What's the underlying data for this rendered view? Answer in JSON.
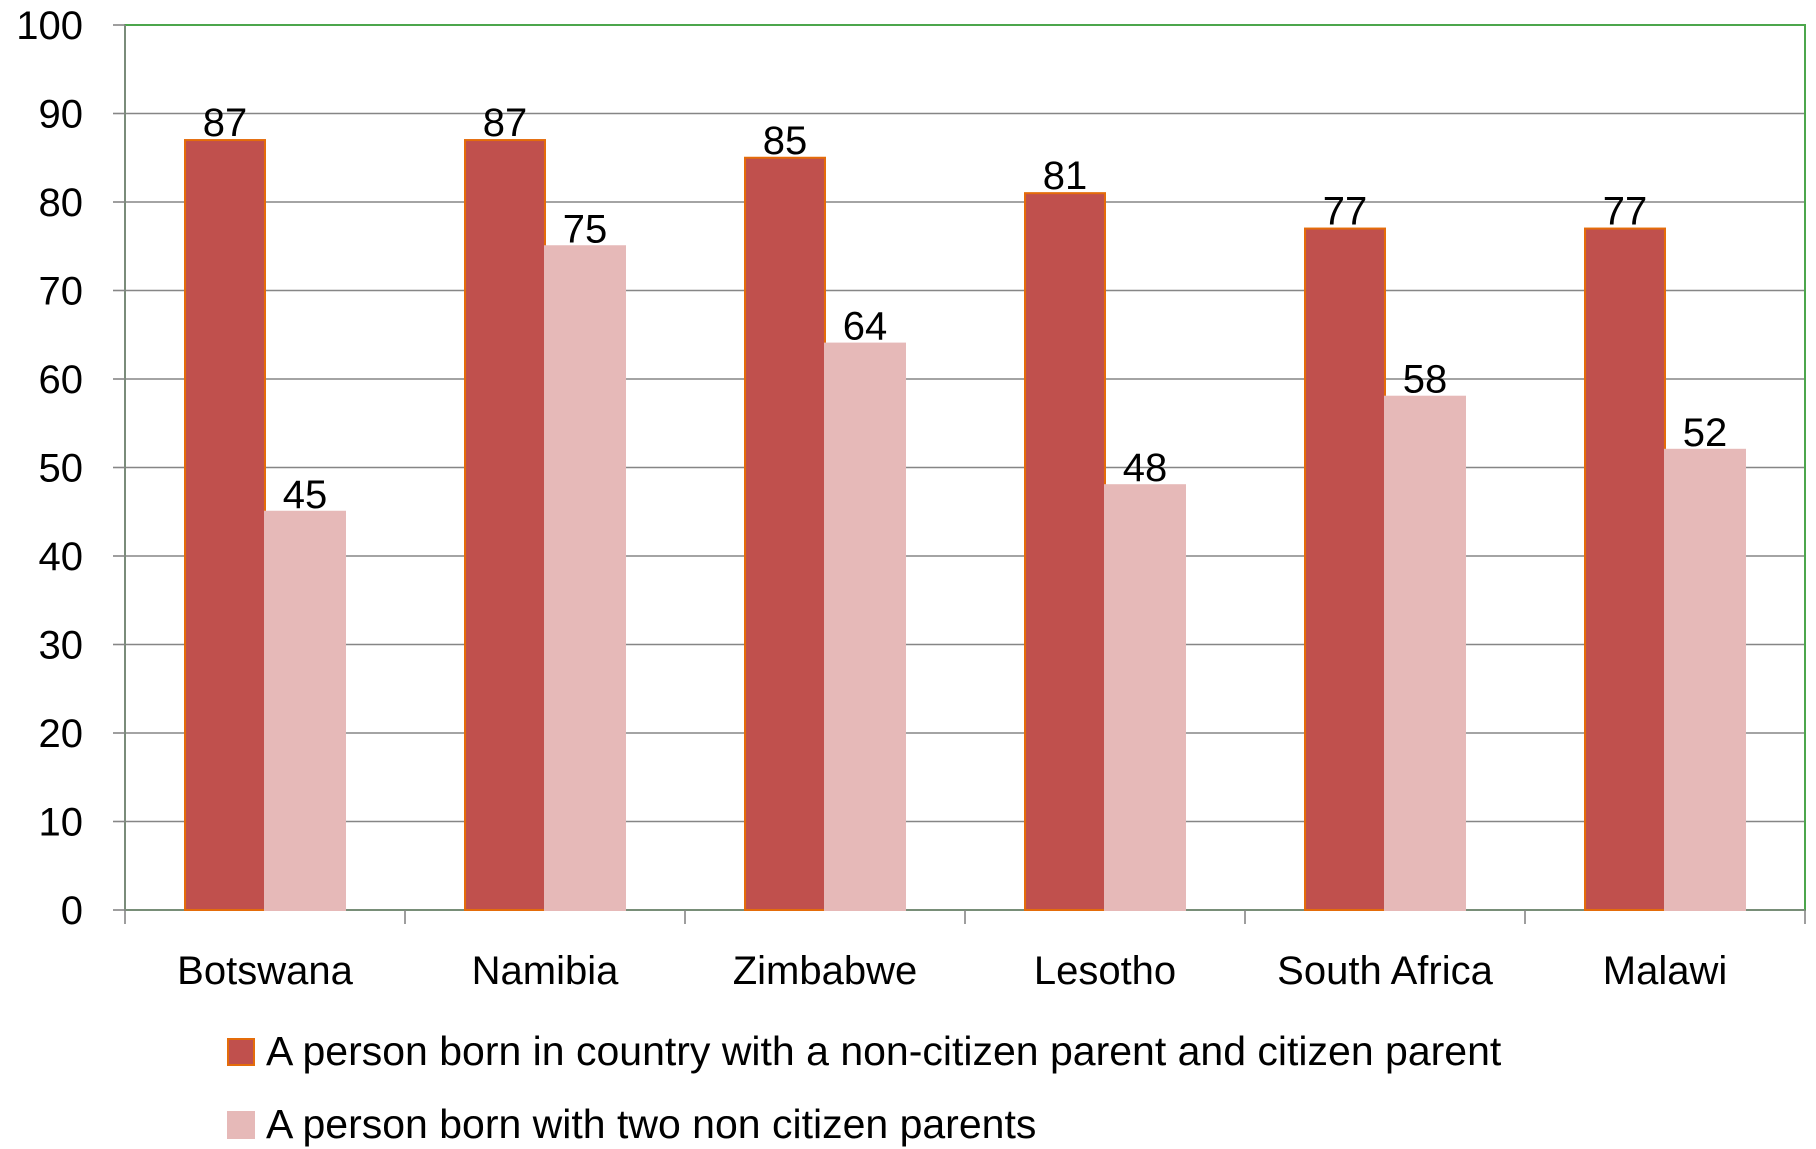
{
  "chart_data": {
    "type": "bar",
    "categories": [
      "Botswana",
      "Namibia",
      "Zimbabwe",
      "Lesotho",
      "South Africa",
      "Malawi"
    ],
    "series": [
      {
        "name": "A person born in country with a non-citizen parent and citizen parent",
        "values": [
          87,
          87,
          85,
          81,
          77,
          77
        ],
        "color": "#C0504D",
        "stroke": "#E46C0A"
      },
      {
        "name": "A person born with two non citizen parents",
        "values": [
          45,
          75,
          64,
          48,
          58,
          52
        ],
        "color": "#E6B9B8",
        "stroke": "#E6B9B8"
      }
    ],
    "ylim": [
      0,
      100
    ],
    "yticks": [
      "0",
      "10",
      "20",
      "30",
      "40",
      "50",
      "60",
      "70",
      "80",
      "90",
      "100"
    ],
    "grid": true,
    "gridline_color": "#868686",
    "plot_border_color": "#4CA64C",
    "data_labels": true,
    "legend_position": "bottom"
  }
}
